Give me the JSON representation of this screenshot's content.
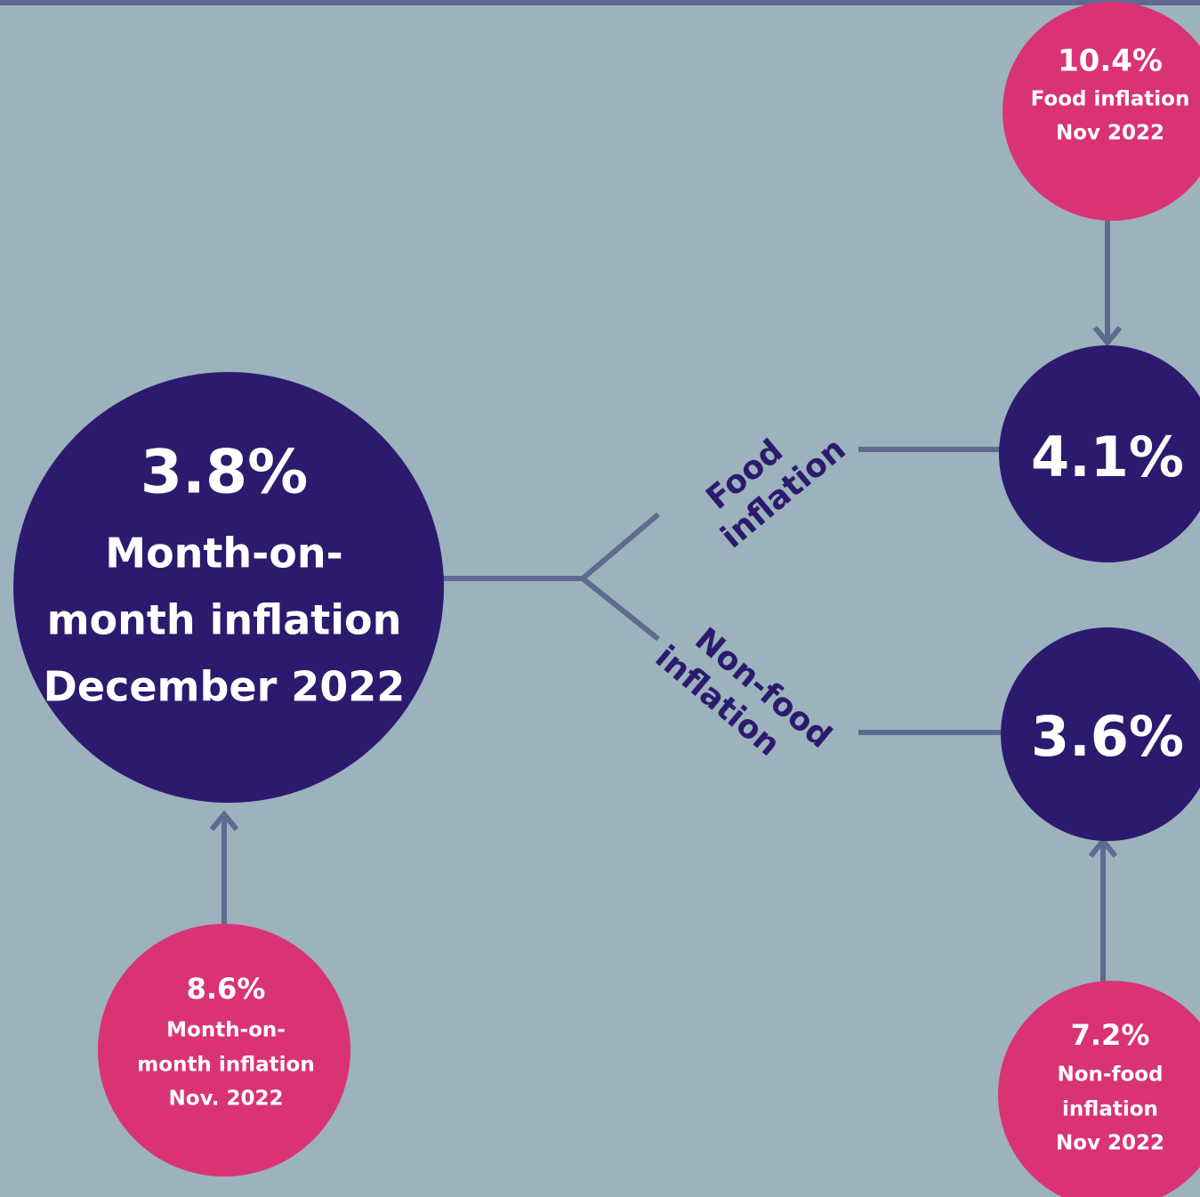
{
  "nodes": [
    {
      "id": "main",
      "lines": [
        "3.8%",
        "Month-on-",
        "month inflation",
        "December 2022"
      ]
    },
    {
      "id": "food",
      "lines": [
        "4.1%"
      ]
    },
    {
      "id": "nonfood",
      "lines": [
        "3.6%"
      ]
    },
    {
      "id": "food-prev",
      "lines": [
        "10.4%",
        "Food inflation",
        "Nov 2022"
      ]
    },
    {
      "id": "main-prev",
      "lines": [
        "8.6%",
        "Month-on-",
        "month inflation",
        "Nov. 2022"
      ]
    },
    {
      "id": "nonfood-prev",
      "lines": [
        "7.2%",
        "Non-food",
        "inflation",
        "Nov 2022"
      ]
    }
  ],
  "branches": [
    {
      "lines": [
        "Food",
        "inflation"
      ]
    },
    {
      "lines": [
        "Non-food",
        "inflation"
      ]
    }
  ]
}
